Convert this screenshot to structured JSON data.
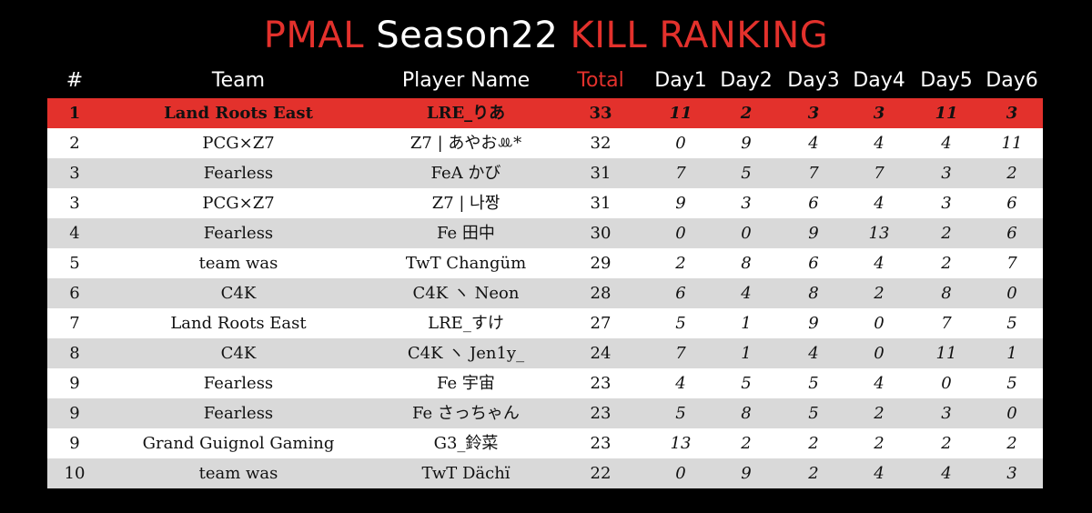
{
  "title": {
    "left": "PMAL",
    "middle": "Season22",
    "right": "KILL RANKING"
  },
  "colors": {
    "accent": "#e3312c",
    "background": "#000000",
    "row_light": "#ffffff",
    "row_dark": "#d9d9d9"
  },
  "columns": {
    "rank": "#",
    "team": "Team",
    "player": "Player Name",
    "total": "Total",
    "day1": "Day1",
    "day2": "Day2",
    "day3": "Day3",
    "day4": "Day4",
    "day5": "Day5",
    "day6": "Day6"
  },
  "rows": [
    {
      "rank": "1",
      "team": "Land Roots East",
      "player": "LRE_りあ",
      "total": "33",
      "d1": "11",
      "d2": "2",
      "d3": "3",
      "d4": "3",
      "d5": "11",
      "d6": "3"
    },
    {
      "rank": "2",
      "team": "PCG×Z7",
      "player": "Z7 | あやおꔛ*",
      "total": "32",
      "d1": "0",
      "d2": "9",
      "d3": "4",
      "d4": "4",
      "d5": "4",
      "d6": "11"
    },
    {
      "rank": "3",
      "team": "Fearless",
      "player": "FeA かび",
      "total": "31",
      "d1": "7",
      "d2": "5",
      "d3": "7",
      "d4": "7",
      "d5": "3",
      "d6": "2"
    },
    {
      "rank": "3",
      "team": "PCG×Z7",
      "player": "Z7 | 나짱",
      "total": "31",
      "d1": "9",
      "d2": "3",
      "d3": "6",
      "d4": "4",
      "d5": "3",
      "d6": "6"
    },
    {
      "rank": "4",
      "team": "Fearless",
      "player": "Fe 田中",
      "total": "30",
      "d1": "0",
      "d2": "0",
      "d3": "9",
      "d4": "13",
      "d5": "2",
      "d6": "6"
    },
    {
      "rank": "5",
      "team": "team was",
      "player": "TwT Changüm",
      "total": "29",
      "d1": "2",
      "d2": "8",
      "d3": "6",
      "d4": "4",
      "d5": "2",
      "d6": "7"
    },
    {
      "rank": "6",
      "team": "C4K",
      "player": "C4K ヽ Neon",
      "total": "28",
      "d1": "6",
      "d2": "4",
      "d3": "8",
      "d4": "2",
      "d5": "8",
      "d6": "0"
    },
    {
      "rank": "7",
      "team": "Land Roots East",
      "player": "LRE_すけ",
      "total": "27",
      "d1": "5",
      "d2": "1",
      "d3": "9",
      "d4": "0",
      "d5": "7",
      "d6": "5"
    },
    {
      "rank": "8",
      "team": "C4K",
      "player": "C4K ヽ Jen1y_",
      "total": "24",
      "d1": "7",
      "d2": "1",
      "d3": "4",
      "d4": "0",
      "d5": "11",
      "d6": "1"
    },
    {
      "rank": "9",
      "team": "Fearless",
      "player": "Fe 宇宙",
      "total": "23",
      "d1": "4",
      "d2": "5",
      "d3": "5",
      "d4": "4",
      "d5": "0",
      "d6": "5"
    },
    {
      "rank": "9",
      "team": "Fearless",
      "player": "Fe さっちゃん",
      "total": "23",
      "d1": "5",
      "d2": "8",
      "d3": "5",
      "d4": "2",
      "d5": "3",
      "d6": "0"
    },
    {
      "rank": "9",
      "team": "Grand Guignol Gaming",
      "player": "G3_鈴菜",
      "total": "23",
      "d1": "13",
      "d2": "2",
      "d3": "2",
      "d4": "2",
      "d5": "2",
      "d6": "2"
    },
    {
      "rank": "10",
      "team": "team was",
      "player": "TwT Dächï",
      "total": "22",
      "d1": "0",
      "d2": "9",
      "d3": "2",
      "d4": "4",
      "d5": "4",
      "d6": "3"
    }
  ]
}
